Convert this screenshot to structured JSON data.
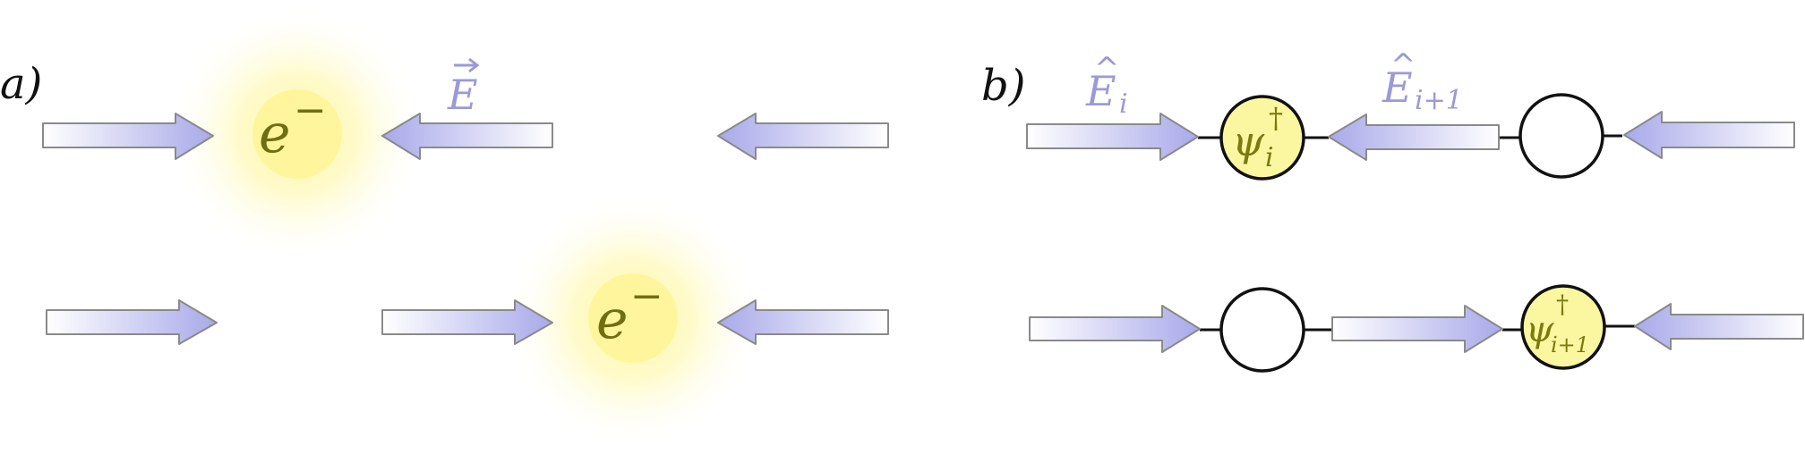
{
  "panel_a": {
    "label": "a)",
    "field_label": "E",
    "particle_label": "e",
    "particle_charge": "−"
  },
  "panel_b": {
    "label": "b)",
    "field_label_i": "E",
    "field_sub_i": "i",
    "field_label_i1": "E",
    "field_sub_i1": "i+1",
    "operator": "ψ",
    "operator_dagger": "†",
    "operator_sub_i": "i",
    "operator_sub_i1": "i+1"
  },
  "colors": {
    "arrow_fill": "#aaaaea",
    "arrow_stroke": "#8a8a8a",
    "field_text": "#9a9ad8",
    "glow": "#fff59a",
    "site_fill": "#fbf7a0",
    "operator_text": "#7a7a10",
    "charge_text": "#6f6f12"
  }
}
